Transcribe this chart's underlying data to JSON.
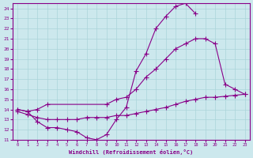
{
  "xlabel": "Windchill (Refroidissement éolien,°C)",
  "background_color": "#cce8ed",
  "line_color": "#880088",
  "grid_color": "#aad4da",
  "xlim": [
    -0.5,
    23.5
  ],
  "ylim": [
    11,
    24.5
  ],
  "yticks": [
    11,
    12,
    13,
    14,
    15,
    16,
    17,
    18,
    19,
    20,
    21,
    22,
    23,
    24
  ],
  "xticks": [
    0,
    1,
    2,
    3,
    4,
    5,
    6,
    7,
    8,
    9,
    10,
    11,
    12,
    13,
    14,
    15,
    16,
    17,
    18,
    19,
    20,
    21,
    22,
    23
  ],
  "curve1_x": [
    0,
    1,
    2,
    3,
    4,
    5,
    6,
    7,
    8,
    9,
    10,
    11,
    12,
    13,
    14,
    15,
    16,
    17,
    18
  ],
  "curve1_y": [
    14.0,
    13.8,
    12.8,
    12.2,
    12.2,
    12.0,
    11.8,
    11.2,
    11.0,
    11.5,
    13.0,
    14.2,
    17.8,
    19.5,
    22.0,
    23.2,
    24.2,
    24.5,
    23.5
  ],
  "curve2_x": [
    0,
    1,
    2,
    3,
    9,
    10,
    11,
    12,
    13,
    14,
    15,
    16,
    17,
    18,
    19,
    20,
    21,
    22,
    23
  ],
  "curve2_y": [
    14.0,
    13.8,
    14.0,
    14.5,
    14.5,
    15.0,
    15.2,
    16.0,
    17.2,
    18.0,
    19.0,
    20.0,
    20.5,
    21.0,
    21.0,
    20.5,
    16.5,
    16.0,
    15.5
  ],
  "curve3_x": [
    0,
    1,
    2,
    3,
    4,
    5,
    6,
    7,
    8,
    9,
    10,
    11,
    12,
    13,
    14,
    15,
    16,
    17,
    18,
    19,
    20,
    21,
    22,
    23
  ],
  "curve3_y": [
    13.8,
    13.5,
    13.2,
    13.0,
    13.0,
    13.0,
    13.0,
    13.2,
    13.2,
    13.2,
    13.4,
    13.4,
    13.6,
    13.8,
    14.0,
    14.2,
    14.5,
    14.8,
    15.0,
    15.2,
    15.2,
    15.3,
    15.4,
    15.5
  ]
}
